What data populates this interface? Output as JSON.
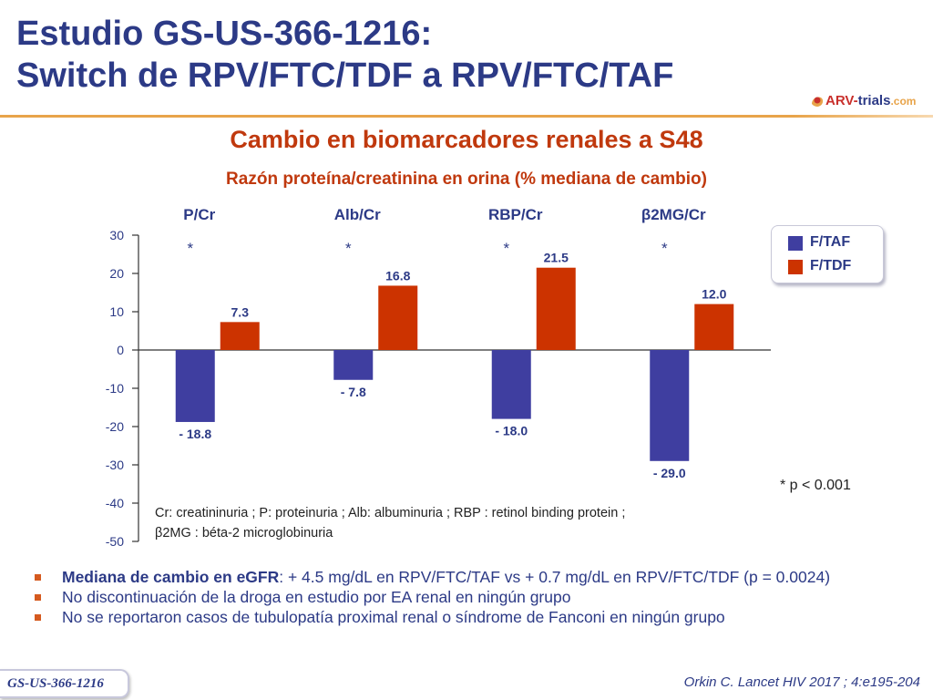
{
  "title": {
    "line1": "Estudio GS-US-366-1216:",
    "line2": "Switch de RPV/FTC/TDF a RPV/FTC/TAF"
  },
  "logo": {
    "part1": "ARV-",
    "part2": "trials",
    "part3": ".com"
  },
  "colors": {
    "title": "#2c3a86",
    "accent": "#c0390e",
    "series_taf": "#3f3ea0",
    "series_tdf": "#cc3300",
    "rule": "#e8a44a"
  },
  "chart_data": {
    "type": "bar",
    "title": "Cambio en biomarcadores renales a S48",
    "subtitle": "Razón proteína/creatinina en orina (% mediana de cambio)",
    "categories": [
      "P/Cr",
      "Alb/Cr",
      "RBP/Cr",
      "β2MG/Cr"
    ],
    "series": [
      {
        "name": "F/TAF",
        "values": [
          -18.8,
          -7.8,
          -18.0,
          -29.0
        ],
        "labels": [
          "- 18.8",
          "- 7.8",
          "- 18.0",
          "- 29.0"
        ],
        "color": "#3f3ea0"
      },
      {
        "name": "F/TDF",
        "values": [
          7.3,
          16.8,
          21.5,
          12.0
        ],
        "labels": [
          "7.3",
          "16.8",
          "21.5",
          "12.0"
        ],
        "color": "#cc3300"
      }
    ],
    "significance": [
      "*",
      "*",
      "*",
      "*"
    ],
    "ylim": [
      -50,
      30
    ],
    "yticks": [
      30,
      20,
      10,
      0,
      -10,
      -20,
      -30,
      -40,
      -50
    ],
    "grid": false,
    "legend": "right"
  },
  "notes": {
    "significance": "* p < 0.001",
    "footnote_line1": "Cr: creatininuria ; P: proteinuria ; Alb: albuminuria ; RBP : retinol binding protein ;",
    "footnote_line2": "β2MG : béta-2 microglobinuria"
  },
  "bullets": [
    {
      "strong": "Mediana de cambio  en  eGFR",
      "text": ": + 4.5 mg/dL en RPV/FTC/TAF vs + 0.7 mg/dL en RPV/FTC/TDF (p = 0.0024)"
    },
    {
      "strong": "",
      "text": "No discontinuación  de la droga en estudio por EA renal en ningún grupo"
    },
    {
      "strong": "",
      "text": "No se reportaron casos de tubulopatía proximal renal o síndrome de Fanconi en ningún grupo"
    }
  ],
  "footer": {
    "study_tag": "GS-US-366-1216",
    "citation": "Orkin C. Lancet HIV 2017 ; 4:e195-204"
  }
}
